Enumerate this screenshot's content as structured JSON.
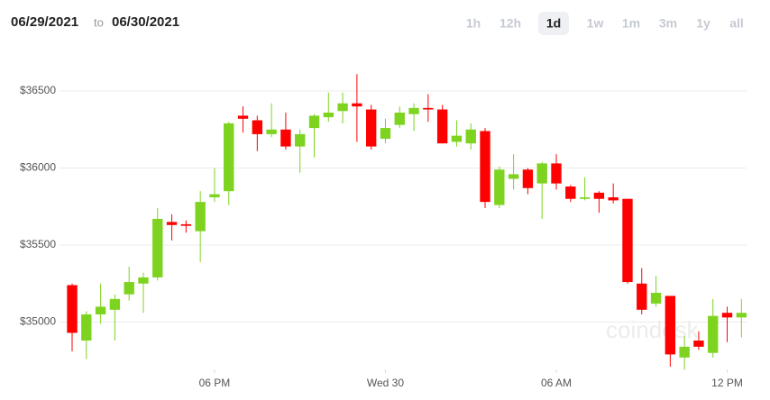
{
  "header": {
    "from": "06/29/2021",
    "to_word": "to",
    "to": "06/30/2021",
    "ranges": [
      "1h",
      "12h",
      "1d",
      "1w",
      "1m",
      "3m",
      "1y",
      "all"
    ],
    "active_range": "1d"
  },
  "chart_data": {
    "type": "candlestick",
    "watermark": "coindesk",
    "x": [
      13,
      13.5,
      14,
      14.5,
      15,
      15.5,
      16,
      16.5,
      17,
      17.5,
      18,
      18.5,
      19,
      19.5,
      20,
      20.5,
      21,
      21.5,
      22,
      22.5,
      23,
      23.5,
      24,
      24.5,
      25,
      25.5,
      26,
      26.5,
      27,
      27.5,
      28,
      28.5,
      29,
      29.5,
      30,
      30.5,
      31,
      31.5,
      32,
      32.5,
      33,
      33.5,
      34,
      34.5,
      35,
      35.5,
      36,
      36.5
    ],
    "open": [
      35240,
      34880,
      35050,
      35080,
      35180,
      35250,
      35290,
      35650,
      35635,
      35590,
      35810,
      35850,
      36340,
      36310,
      36220,
      36250,
      36140,
      36260,
      36330,
      36370,
      36420,
      36380,
      36190,
      36280,
      36350,
      36390,
      36380,
      36170,
      36160,
      36240,
      35760,
      35930,
      35990,
      35900,
      36030,
      35880,
      35800,
      35840,
      35810,
      35800,
      35250,
      35120,
      35170,
      34770,
      34880,
      34800,
      35060,
      35030
    ],
    "high": [
      35250,
      35070,
      35250,
      35180,
      35360,
      35320,
      35740,
      35700,
      35660,
      35850,
      36000,
      36300,
      36400,
      36340,
      36420,
      36360,
      36250,
      36350,
      36490,
      36490,
      36610,
      36410,
      36320,
      36400,
      36420,
      36480,
      36410,
      36310,
      36290,
      36260,
      36010,
      36090,
      36000,
      36040,
      36090,
      35890,
      35940,
      35850,
      35900,
      35800,
      35350,
      35300,
      35170,
      34910,
      34940,
      35150,
      35100,
      35150
    ],
    "low": [
      34810,
      34760,
      34990,
      34880,
      35140,
      35060,
      35270,
      35530,
      35580,
      35390,
      35780,
      35760,
      36230,
      36110,
      36200,
      36120,
      35970,
      36070,
      36300,
      36290,
      36170,
      36120,
      36160,
      36260,
      36240,
      36300,
      36160,
      36140,
      36120,
      35740,
      35740,
      35860,
      35830,
      35670,
      35860,
      35780,
      35790,
      35710,
      35770,
      35250,
      35050,
      35100,
      34710,
      34690,
      34820,
      34770,
      34870,
      34900
    ],
    "close": [
      34930,
      35050,
      35100,
      35150,
      35260,
      35290,
      35670,
      35630,
      35625,
      35780,
      35830,
      36290,
      36320,
      36220,
      36250,
      36140,
      36220,
      36340,
      36360,
      36420,
      36400,
      36140,
      36260,
      36360,
      36390,
      36380,
      36160,
      36210,
      36250,
      35780,
      35990,
      35960,
      35870,
      36030,
      35900,
      35800,
      35810,
      35800,
      35790,
      35260,
      35080,
      35190,
      34790,
      34840,
      34840,
      35040,
      35030,
      35060
    ],
    "up_color": "#7ed321",
    "down_color": "#ff0000",
    "xlim": [
      12.43,
      36.68
    ],
    "xticks": [
      {
        "value": 18,
        "label": "06 PM"
      },
      {
        "value": 24,
        "label": "Wed 30"
      },
      {
        "value": 30,
        "label": "06 AM"
      },
      {
        "value": 36,
        "label": "12 PM"
      }
    ],
    "ylim": [
      34693,
      36740
    ],
    "yticks": [
      {
        "value": 35000,
        "label": "$35000"
      },
      {
        "value": 35500,
        "label": "$35500"
      },
      {
        "value": 36000,
        "label": "$36000"
      },
      {
        "value": 36500,
        "label": "$36500"
      }
    ],
    "grid": true
  }
}
